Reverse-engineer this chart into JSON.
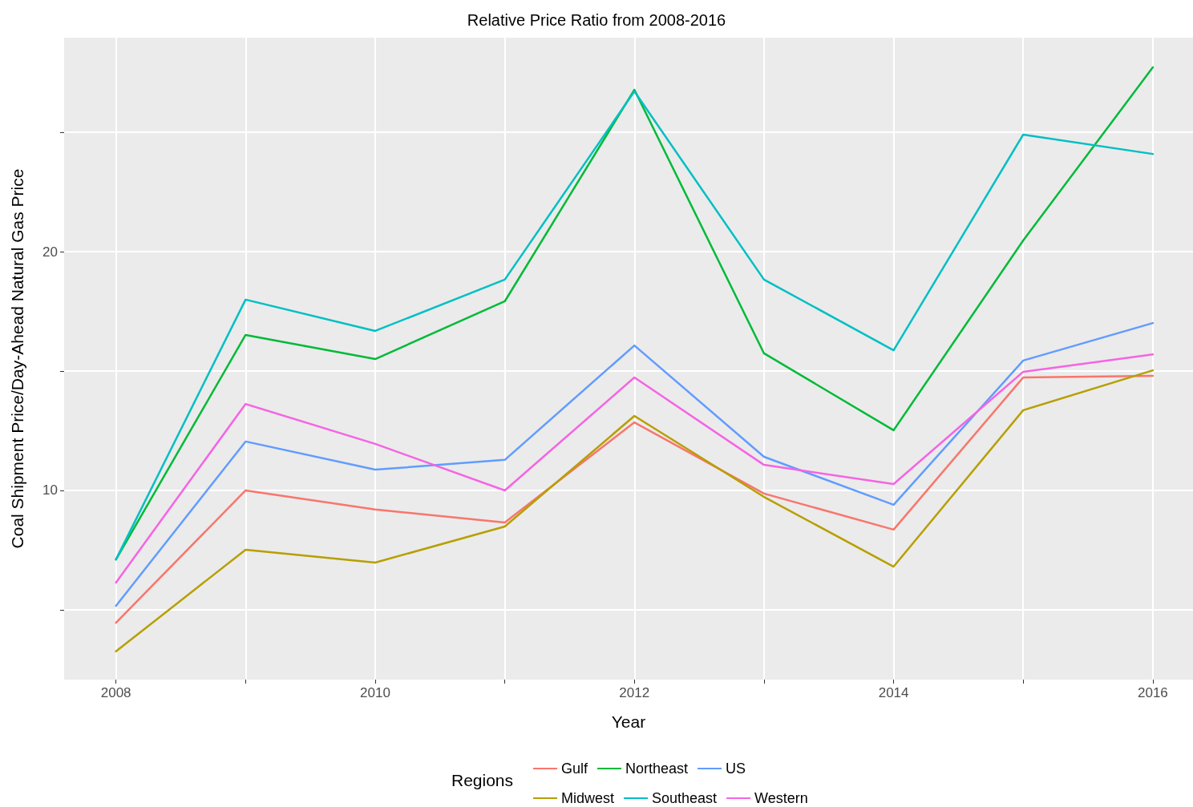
{
  "chart_data": {
    "type": "line",
    "title": "Relative Price Ratio from 2008-2016",
    "xlabel": "Year",
    "ylabel": "Coal Shipment Price/Day-Ahead Natural Gas Price",
    "legend_title": "Regions",
    "x": [
      2008,
      2009,
      2010,
      2011,
      2012,
      2013,
      2014,
      2015,
      2016
    ],
    "series": [
      {
        "name": "Gulf",
        "color": "#f8766d",
        "values": [
          4.46,
          10,
          9.2,
          8.66,
          12.85,
          9.87,
          8.36,
          14.73,
          14.8
        ]
      },
      {
        "name": "Midwest",
        "color": "#b79f00",
        "values": [
          3.26,
          7.52,
          6.98,
          8.49,
          13.12,
          9.73,
          6.81,
          13.36,
          15.03
        ]
      },
      {
        "name": "Northeast",
        "color": "#00ba38",
        "values": [
          7.11,
          16.51,
          15.5,
          17.92,
          26.78,
          15.74,
          12.52,
          20.47,
          27.72
        ]
      },
      {
        "name": "Southeast",
        "color": "#00bfc4",
        "values": [
          7.11,
          17.99,
          16.68,
          18.83,
          26.71,
          18.83,
          15.87,
          24.9,
          24.09
        ]
      },
      {
        "name": "US",
        "color": "#619cff",
        "values": [
          5.17,
          12.05,
          10.87,
          11.28,
          16.07,
          11.41,
          9.4,
          15.44,
          17.01
        ]
      },
      {
        "name": "Western",
        "color": "#f564e3",
        "values": [
          6.14,
          13.62,
          11.95,
          10,
          14.73,
          11.07,
          10.27,
          14.97,
          15.7
        ]
      }
    ],
    "xlim": [
      2007.6,
      2016.31
    ],
    "xticks": [
      2008,
      {
        "value": 2009,
        "label": null
      },
      2010,
      {
        "value": 2011,
        "label": null
      },
      2012,
      {
        "value": 2013,
        "label": null
      },
      2014,
      {
        "value": 2015,
        "label": null
      },
      2016
    ],
    "ylim": [
      2.08,
      28.96
    ],
    "yticks": [
      {
        "value": 5,
        "label": null
      },
      10,
      {
        "value": 15,
        "label": null
      },
      20,
      {
        "value": 25,
        "label": null
      }
    ],
    "grid": true,
    "legend": "bottom",
    "marker": "none",
    "line_style": "solid"
  }
}
